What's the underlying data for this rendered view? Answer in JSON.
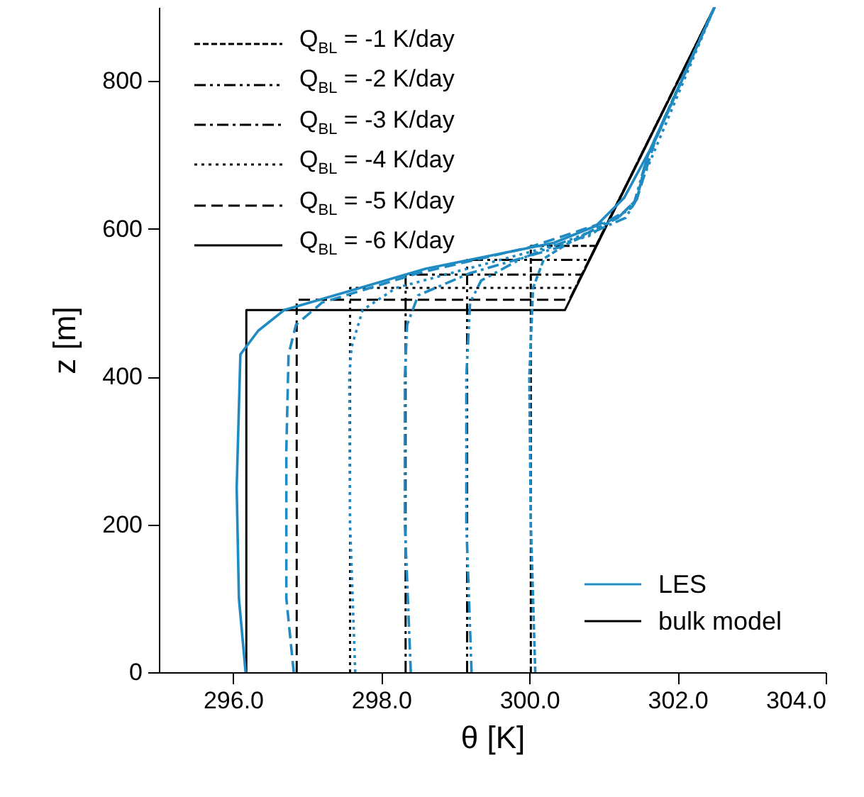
{
  "chart_data": {
    "type": "line",
    "xlabel": "θ [K]",
    "ylabel": "z [m]",
    "xlim": [
      295,
      304
    ],
    "xticks": [
      {
        "value": 296,
        "label": "296.0"
      },
      {
        "value": 298,
        "label": "298.0"
      },
      {
        "value": 300,
        "label": "300.0"
      },
      {
        "value": 302,
        "label": "302.0"
      },
      {
        "value": 304,
        "label": "304.0"
      }
    ],
    "ylim": [
      0,
      900
    ],
    "yticks": [
      0,
      200,
      400,
      600,
      800
    ],
    "legend": "top left",
    "grid": false,
    "marker": "none",
    "annotations": [
      "LES",
      "bulk model"
    ],
    "series": [
      {
        "name": "Q$_{BL}$ = -1 K/day",
        "color": "#000000",
        "line_style": "shortdashed",
        "x": [
          300.02,
          300.02,
          300.9,
          302.5
        ],
        "values": [
          0,
          577,
          577,
          900
        ]
      },
      {
        "name": "Q$_{BL}$ = -2 K/day",
        "color": "#000000",
        "line_style": "dashdotdot",
        "x": [
          299.16,
          299.16,
          300.81,
          302.5
        ],
        "values": [
          0,
          558,
          558,
          900
        ]
      },
      {
        "name": "Q$_{BL}$ = -3 K/day",
        "color": "#000000",
        "line_style": "dashdot",
        "x": [
          298.33,
          298.33,
          300.71,
          302.5
        ],
        "values": [
          0,
          538,
          538,
          900
        ]
      },
      {
        "name": "Q$_{BL}$ = -4 K/day",
        "color": "#000000",
        "line_style": "dotted",
        "x": [
          297.58,
          297.58,
          300.62,
          302.5
        ],
        "values": [
          0,
          520,
          520,
          900
        ]
      },
      {
        "name": "Q$_{BL}$ = -5 K/day",
        "color": "#000000",
        "line_style": "dashed",
        "x": [
          296.86,
          296.86,
          300.54,
          302.5
        ],
        "values": [
          0,
          504,
          504,
          900
        ]
      },
      {
        "name": "Q$_{BL}$ = -6 K/day",
        "color": "#000000",
        "line_style": "solid",
        "x": [
          296.18,
          296.18,
          300.48,
          302.5
        ],
        "values": [
          0,
          490,
          490,
          900
        ]
      },
      {
        "color": "#1f8bc2",
        "line_style": "shortdashed",
        "x": [
          300.08,
          300.02,
          300.0,
          300.05,
          300.2,
          300.6,
          301.2,
          301.45,
          301.6,
          302.5
        ],
        "values": [
          0,
          200,
          400,
          520,
          560,
          585,
          615,
          640,
          700,
          900
        ]
      },
      {
        "color": "#1f8bc2",
        "line_style": "dashdotdot",
        "x": [
          299.22,
          299.15,
          299.15,
          299.2,
          299.35,
          299.9,
          300.8,
          301.4,
          301.6,
          302.5
        ],
        "values": [
          0,
          200,
          400,
          500,
          530,
          560,
          595,
          630,
          700,
          900
        ]
      },
      {
        "color": "#1f8bc2",
        "line_style": "dashdot",
        "x": [
          298.4,
          298.32,
          298.32,
          298.35,
          298.5,
          299.2,
          300.4,
          301.3,
          301.45,
          301.6,
          302.5
        ],
        "values": [
          0,
          200,
          400,
          470,
          510,
          540,
          575,
          615,
          640,
          700,
          900
        ]
      },
      {
        "color": "#1f8bc2",
        "line_style": "dotted",
        "x": [
          297.65,
          297.58,
          297.57,
          297.6,
          297.75,
          298.2,
          299.5,
          300.8,
          301.4,
          301.5,
          302.5
        ],
        "values": [
          0,
          200,
          400,
          440,
          490,
          520,
          555,
          590,
          630,
          660,
          900
        ]
      },
      {
        "color": "#1f8bc2",
        "line_style": "dashed",
        "x": [
          296.82,
          296.72,
          296.72,
          296.75,
          296.85,
          297.2,
          298.5,
          300.0,
          301.2,
          301.45,
          301.7,
          302.5
        ],
        "values": [
          0,
          100,
          300,
          430,
          470,
          500,
          540,
          575,
          615,
          640,
          720,
          900
        ]
      },
      {
        "color": "#1f8bc2",
        "line_style": "solid",
        "x": [
          296.17,
          296.08,
          296.05,
          296.1,
          296.34,
          296.69,
          298.6,
          300.33,
          300.9,
          301.28,
          301.7,
          302.5
        ],
        "values": [
          0,
          100,
          250,
          430,
          462,
          490,
          546,
          581,
          604,
          642,
          720,
          900
        ]
      }
    ]
  }
}
